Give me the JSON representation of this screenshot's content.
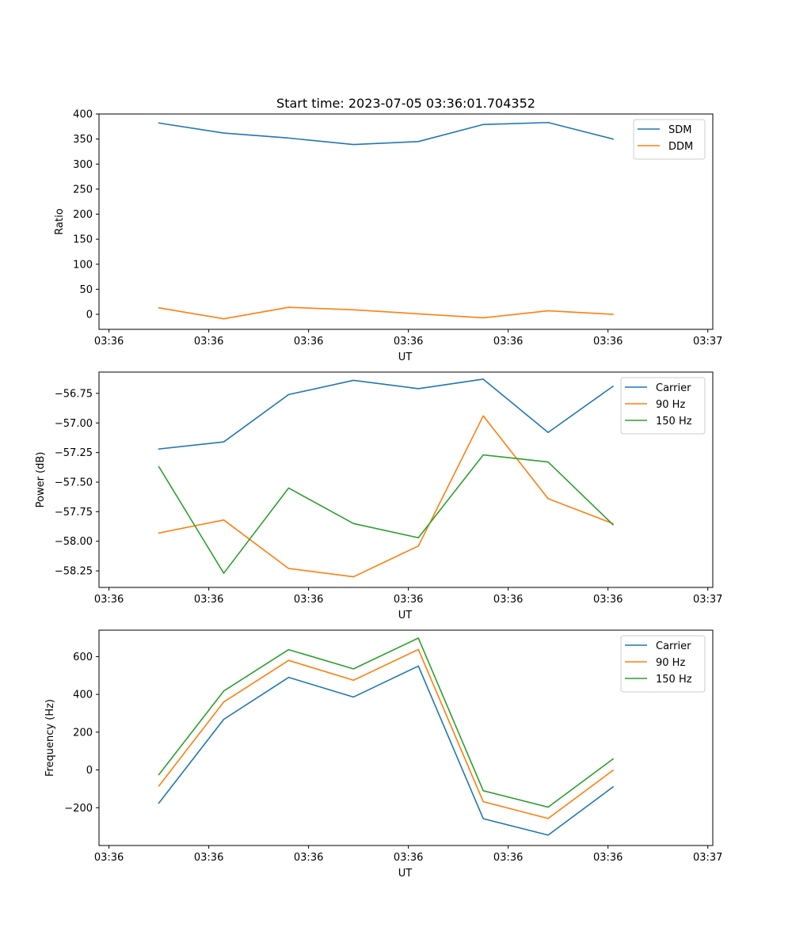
{
  "figure": {
    "title": "Start time: 2023-07-05 03:36:01.704352"
  },
  "chart_data": [
    {
      "type": "line",
      "title": "Start time: 2023-07-05 03:36:01.704352",
      "xlabel": "UT",
      "ylabel": "Ratio",
      "x": [
        0.5,
        1.15,
        1.8,
        2.45,
        3.1,
        3.75,
        4.4,
        5.05
      ],
      "xlim": [
        -0.1,
        6.05
      ],
      "xticks": [
        0,
        1,
        2,
        3,
        4,
        5,
        6
      ],
      "xtick_labels": [
        "03:36",
        "03:36",
        "03:36",
        "03:36",
        "03:36",
        "03:36",
        "03:37"
      ],
      "ylim": [
        -30,
        400
      ],
      "yticks": [
        0,
        50,
        100,
        150,
        200,
        250,
        300,
        350,
        400
      ],
      "ytick_labels": [
        "0",
        "50",
        "100",
        "150",
        "200",
        "250",
        "300",
        "350",
        "400"
      ],
      "legend_position": "top-right",
      "series": [
        {
          "name": "SDM",
          "color": "#1f77b4",
          "values": [
            382,
            362,
            352,
            339,
            345,
            379,
            383,
            350
          ]
        },
        {
          "name": "DDM",
          "color": "#ff7f0e",
          "values": [
            13,
            -9,
            14,
            9,
            1,
            -7,
            7,
            0
          ]
        }
      ]
    },
    {
      "type": "line",
      "xlabel": "UT",
      "ylabel": "Power (dB)",
      "x": [
        0.5,
        1.15,
        1.8,
        2.45,
        3.1,
        3.75,
        4.4,
        5.05
      ],
      "xlim": [
        -0.1,
        6.05
      ],
      "xticks": [
        0,
        1,
        2,
        3,
        4,
        5,
        6
      ],
      "xtick_labels": [
        "03:36",
        "03:36",
        "03:36",
        "03:36",
        "03:36",
        "03:36",
        "03:37"
      ],
      "ylim": [
        -58.39,
        -56.57
      ],
      "yticks": [
        -58.25,
        -58.0,
        -57.75,
        -57.5,
        -57.25,
        -57.0,
        -56.75
      ],
      "ytick_labels": [
        "−58.25",
        "−58.00",
        "−57.75",
        "−57.50",
        "−57.25",
        "−57.00",
        "−56.75"
      ],
      "legend_position": "top-right",
      "series": [
        {
          "name": "Carrier",
          "color": "#1f77b4",
          "values": [
            -57.22,
            -57.16,
            -56.76,
            -56.64,
            -56.71,
            -56.63,
            -57.08,
            -56.69
          ]
        },
        {
          "name": "90 Hz",
          "color": "#ff7f0e",
          "values": [
            -57.93,
            -57.82,
            -58.23,
            -58.3,
            -58.04,
            -56.94,
            -57.64,
            -57.85
          ]
        },
        {
          "name": "150 Hz",
          "color": "#2ca02c",
          "values": [
            -57.37,
            -58.27,
            -57.55,
            -57.85,
            -57.97,
            -57.27,
            -57.33,
            -57.86
          ]
        }
      ]
    },
    {
      "type": "line",
      "xlabel": "UT",
      "ylabel": "Frequency (Hz)",
      "x": [
        0.5,
        1.15,
        1.8,
        2.45,
        3.1,
        3.75,
        4.4,
        5.05
      ],
      "xlim": [
        -0.1,
        6.05
      ],
      "xticks": [
        0,
        1,
        2,
        3,
        4,
        5,
        6
      ],
      "xtick_labels": [
        "03:36",
        "03:36",
        "03:36",
        "03:36",
        "03:36",
        "03:36",
        "03:37"
      ],
      "ylim": [
        -400,
        740
      ],
      "yticks": [
        -200,
        0,
        200,
        400,
        600
      ],
      "ytick_labels": [
        "−200",
        "0",
        "200",
        "400",
        "600"
      ],
      "legend_position": "top-right",
      "series": [
        {
          "name": "Carrier",
          "color": "#1f77b4",
          "values": [
            -175,
            268,
            490,
            386,
            550,
            -258,
            -345,
            -90
          ]
        },
        {
          "name": "90 Hz",
          "color": "#ff7f0e",
          "values": [
            -85,
            360,
            580,
            475,
            638,
            -168,
            -257,
            -2
          ]
        },
        {
          "name": "150 Hz",
          "color": "#2ca02c",
          "values": [
            -25,
            418,
            637,
            535,
            698,
            -110,
            -197,
            58
          ]
        }
      ]
    }
  ]
}
